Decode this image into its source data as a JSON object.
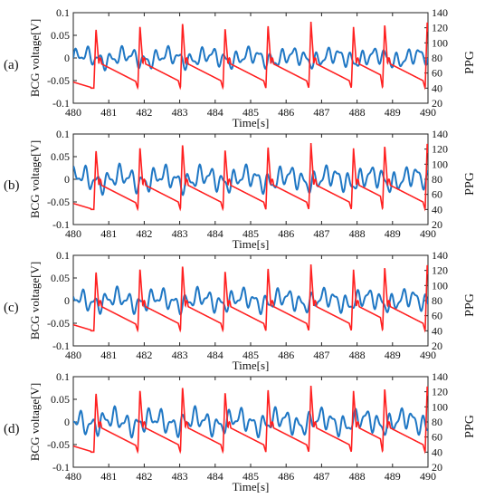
{
  "chart_data": [
    {
      "panel_label": "(a)",
      "type": "line",
      "xlabel": "Time[s]",
      "ylabel": "BCG voltage[V]",
      "y2label": "PPG",
      "xlim": [
        480,
        490
      ],
      "ylim": [
        -0.1,
        0.1
      ],
      "y2lim": [
        20,
        140
      ],
      "xticks": [
        "480",
        "481",
        "482",
        "483",
        "484",
        "485",
        "486",
        "487",
        "488",
        "489",
        "490"
      ],
      "yticks": [
        "-0.1",
        "-0.05",
        "0",
        "0.05",
        "0.1"
      ],
      "y2ticks": [
        "20",
        "40",
        "60",
        "80",
        "100",
        "120",
        "140"
      ],
      "ppg_beats": [
        480.58,
        481.82,
        483.02,
        484.22,
        485.43,
        486.64,
        487.84,
        488.72,
        489.92
      ],
      "series": [
        {
          "color": "#1f77c4",
          "axis": "left",
          "amplitude": 0.022,
          "phase": 0.0
        },
        {
          "color": "#ff2020",
          "axis": "right"
        }
      ]
    },
    {
      "panel_label": "(b)",
      "type": "line",
      "xlabel": "Time[s]",
      "ylabel": "BCG voltage[V]",
      "y2label": "PPG",
      "xlim": [
        480,
        490
      ],
      "ylim": [
        -0.1,
        0.1
      ],
      "y2lim": [
        20,
        140
      ],
      "xticks": [
        "480",
        "481",
        "482",
        "483",
        "484",
        "485",
        "486",
        "487",
        "488",
        "489",
        "490"
      ],
      "yticks": [
        "-0.1",
        "-0.05",
        "0",
        "0.05",
        "0.1"
      ],
      "y2ticks": [
        "20",
        "40",
        "60",
        "80",
        "100",
        "120",
        "140"
      ],
      "ppg_beats": [
        480.58,
        481.82,
        483.02,
        484.22,
        485.43,
        486.64,
        487.84,
        488.72,
        489.92
      ],
      "series": [
        {
          "color": "#1f77c4",
          "axis": "left",
          "amplitude": 0.028,
          "phase": 1.3
        },
        {
          "color": "#ff2020",
          "axis": "right"
        }
      ]
    },
    {
      "panel_label": "(c)",
      "type": "line",
      "xlabel": "Time[s]",
      "ylabel": "BCG voltage[V]",
      "y2label": "PPG",
      "xlim": [
        480,
        490
      ],
      "ylim": [
        -0.1,
        0.1
      ],
      "y2lim": [
        20,
        140
      ],
      "xticks": [
        "480",
        "481",
        "482",
        "483",
        "484",
        "485",
        "486",
        "487",
        "488",
        "489",
        "490"
      ],
      "yticks": [
        "-0.1",
        "-0.05",
        "0",
        "0.05",
        "0.1"
      ],
      "y2ticks": [
        "20",
        "40",
        "60",
        "80",
        "100",
        "120",
        "140"
      ],
      "ppg_beats": [
        480.58,
        481.82,
        483.02,
        484.22,
        485.43,
        486.64,
        487.84,
        488.72,
        489.92
      ],
      "series": [
        {
          "color": "#1f77c4",
          "axis": "left",
          "amplitude": 0.025,
          "phase": 2.6
        },
        {
          "color": "#ff2020",
          "axis": "right"
        }
      ]
    },
    {
      "panel_label": "(d)",
      "type": "line",
      "xlabel": "Time[s]",
      "ylabel": "BCG voltage[V]",
      "y2label": "PPG",
      "xlim": [
        480,
        490
      ],
      "ylim": [
        -0.1,
        0.1
      ],
      "y2lim": [
        20,
        140
      ],
      "xticks": [
        "480",
        "481",
        "482",
        "483",
        "484",
        "485",
        "486",
        "487",
        "488",
        "489",
        "490"
      ],
      "yticks": [
        "-0.1",
        "-0.05",
        "0",
        "0.05",
        "0.1"
      ],
      "y2ticks": [
        "20",
        "40",
        "60",
        "80",
        "100",
        "120",
        "140"
      ],
      "ppg_beats": [
        480.58,
        481.82,
        483.02,
        484.22,
        485.43,
        486.64,
        487.84,
        488.72,
        489.92
      ],
      "series": [
        {
          "color": "#1f77c4",
          "axis": "left",
          "amplitude": 0.028,
          "phase": 3.9
        },
        {
          "color": "#ff2020",
          "axis": "right"
        }
      ]
    }
  ]
}
